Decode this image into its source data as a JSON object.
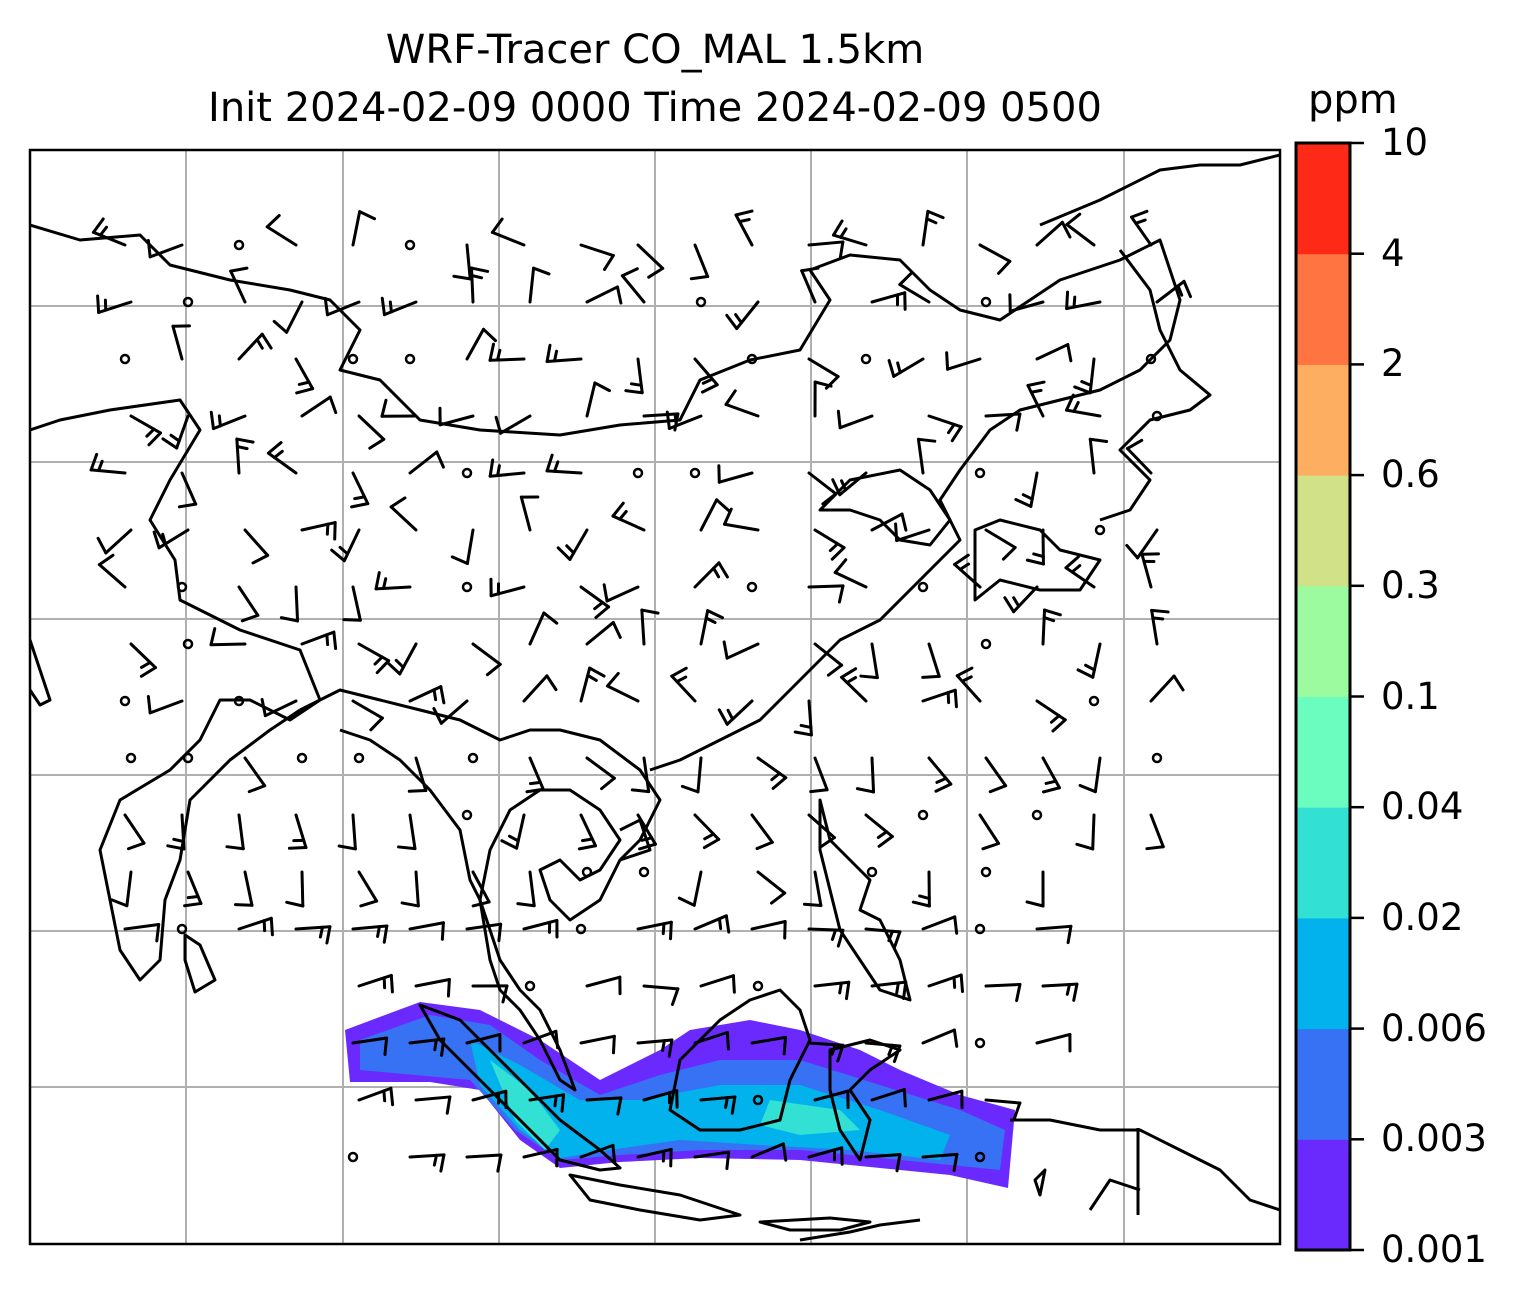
{
  "title": {
    "line1": "WRF-Tracer CO_MAL 1.5km",
    "line2": "Init 2024-02-09 0000 Time 2024-02-09 0500"
  },
  "colorbar": {
    "unit": "ppm",
    "ticks": [
      "0.001",
      "0.003",
      "0.006",
      "0.02",
      "0.04",
      "0.1",
      "0.3",
      "0.6",
      "2",
      "4",
      "10"
    ],
    "colors": [
      "#6a2afe",
      "#3672f3",
      "#02b2ec",
      "#33e0d4",
      "#6bfcbf",
      "#9bfb9e",
      "#d0e188",
      "#fdae61",
      "#ff7440",
      "#fe2a17"
    ]
  },
  "map": {
    "field": "CO_MAL tracer",
    "gridlines": true,
    "wind_barbs": true
  }
}
